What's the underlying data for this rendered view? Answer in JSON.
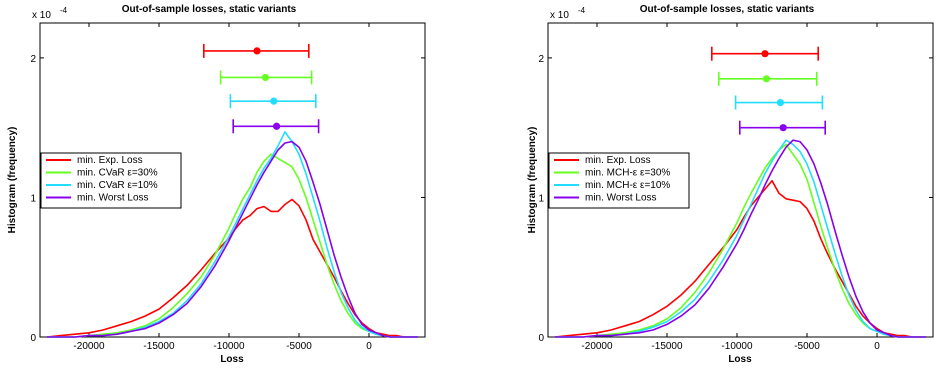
{
  "chart_data": [
    {
      "type": "line",
      "title": "Out-of-sample losses, static variants",
      "xlabel": "Loss",
      "ylabel": "Histogram (frequency)",
      "y_multiplier": "x 10",
      "y_exponent": "-4",
      "xlim": [
        -23500,
        4000
      ],
      "ylim": [
        0,
        0.000225
      ],
      "xticks": [
        -20000,
        -15000,
        -10000,
        -5000,
        0
      ],
      "xtick_labels": [
        "-20000",
        "-15000",
        "-10000",
        "-5000",
        "0"
      ],
      "yticks": [
        0,
        0.0001,
        0.0002
      ],
      "ytick_labels": [
        "0",
        "1",
        "2"
      ],
      "grid": false,
      "legend_position": "middle-left",
      "series": [
        {
          "name": "min. Exp. Loss",
          "color": "#ff0000",
          "x": [
            -23000,
            -22000,
            -21000,
            -20000,
            -19000,
            -18000,
            -17000,
            -16000,
            -15000,
            -14000,
            -13000,
            -12000,
            -11000,
            -10000,
            -9500,
            -9000,
            -8500,
            -8000,
            -7500,
            -7000,
            -6500,
            -6000,
            -5500,
            -5000,
            -4500,
            -4000,
            -3500,
            -3000,
            -2500,
            -2000,
            -1500,
            -1000,
            -500,
            0,
            500,
            1000,
            1500,
            2000,
            2500,
            3000,
            3500
          ],
          "y": [
            0,
            1e-06,
            2e-06,
            3e-06,
            5e-06,
            8e-06,
            1.1e-05,
            1.5e-05,
            2e-05,
            2.8e-05,
            3.7e-05,
            4.8e-05,
            6e-05,
            7.1e-05,
            7.8e-05,
            8.4e-05,
            8.7e-05,
            9.2e-05,
            9.35e-05,
            9e-05,
            9e-05,
            9.5e-05,
            9.85e-05,
            9.4e-05,
            8.4e-05,
            7e-05,
            6.1e-05,
            5.2e-05,
            4.3e-05,
            3.3e-05,
            2.4e-05,
            1.6e-05,
            1e-05,
            6e-06,
            3e-06,
            2e-06,
            1e-06,
            1e-06,
            0,
            0,
            0
          ]
        },
        {
          "name": "min. CVaR ε=30%",
          "color": "#66ff22",
          "x": [
            -23000,
            -22000,
            -21000,
            -20000,
            -19000,
            -18000,
            -17000,
            -16000,
            -15000,
            -14000,
            -13000,
            -12000,
            -11000,
            -10000,
            -9500,
            -9000,
            -8500,
            -8000,
            -7500,
            -7000,
            -6500,
            -6000,
            -5500,
            -5000,
            -4500,
            -4000,
            -3500,
            -3000,
            -2500,
            -2000,
            -1500,
            -1000,
            -500,
            0,
            500,
            1000,
            1500,
            2000,
            2500,
            3000,
            3500
          ],
          "y": [
            0,
            0,
            0,
            1e-06,
            2e-06,
            3e-06,
            5e-06,
            8e-06,
            1.3e-05,
            2.1e-05,
            3.1e-05,
            4.3e-05,
            5.9e-05,
            7.8e-05,
            8.9e-05,
            9.9e-05,
            0.000107,
            0.000118,
            0.000126,
            0.000131,
            0.000128,
            0.000125,
            0.000122,
            0.000113,
            0.0001,
            8.4e-05,
            6.8e-05,
            5.2e-05,
            3.8e-05,
            2.6e-05,
            1.7e-05,
            1e-05,
            6e-06,
            4e-06,
            2e-06,
            1e-06,
            0,
            0,
            0,
            0,
            0
          ]
        },
        {
          "name": "min. CVaR ε=10%",
          "color": "#22ddff",
          "x": [
            -23000,
            -22000,
            -21000,
            -20000,
            -19000,
            -18000,
            -17000,
            -16000,
            -15000,
            -14000,
            -13000,
            -12000,
            -11000,
            -10000,
            -9500,
            -9000,
            -8500,
            -8000,
            -7500,
            -7000,
            -6500,
            -6000,
            -5500,
            -5000,
            -4500,
            -4000,
            -3500,
            -3000,
            -2500,
            -2000,
            -1500,
            -1000,
            -500,
            0,
            500,
            1000,
            1500,
            2000,
            2500,
            3000,
            3500
          ],
          "y": [
            0,
            0,
            0,
            1e-06,
            1e-06,
            2e-06,
            4e-06,
            7e-06,
            1.1e-05,
            1.7e-05,
            2.6e-05,
            3.8e-05,
            5.4e-05,
            7.2e-05,
            8.2e-05,
            9.2e-05,
            0.000102,
            0.000112,
            0.000121,
            0.000128,
            0.000137,
            0.000147,
            0.00014,
            0.000131,
            0.000117,
            0.0001,
            8.3e-05,
            6.4e-05,
            4.7e-05,
            3.2e-05,
            2.1e-05,
            1.2e-05,
            7e-06,
            4e-06,
            2e-06,
            1e-06,
            0,
            0,
            0,
            0,
            0
          ]
        },
        {
          "name": "min. Worst Loss",
          "color": "#8800ee",
          "x": [
            -23000,
            -22000,
            -21000,
            -20000,
            -19000,
            -18000,
            -17000,
            -16000,
            -15000,
            -14000,
            -13000,
            -12000,
            -11000,
            -10000,
            -9500,
            -9000,
            -8500,
            -8000,
            -7500,
            -7000,
            -6500,
            -6000,
            -5500,
            -5000,
            -4500,
            -4000,
            -3500,
            -3000,
            -2500,
            -2000,
            -1500,
            -1000,
            -500,
            0,
            500,
            1000,
            1500,
            2000,
            2500,
            3000,
            3500
          ],
          "y": [
            0,
            0,
            0,
            1e-06,
            1e-06,
            2e-06,
            4e-06,
            6e-06,
            1e-05,
            1.6e-05,
            2.4e-05,
            3.6e-05,
            5.1e-05,
            6.9e-05,
            7.9e-05,
            8.9e-05,
            9.9e-05,
            0.000109,
            0.000118,
            0.000126,
            0.000134,
            0.000139,
            0.00014,
            0.000136,
            0.000126,
            0.000111,
            9.5e-05,
            7.7e-05,
            5.9e-05,
            4.3e-05,
            2.9e-05,
            1.7e-05,
            9e-06,
            5e-06,
            3e-06,
            1e-06,
            0,
            0,
            0,
            0,
            0
          ]
        }
      ],
      "intervals": [
        {
          "color": "#ff0000",
          "low": -11800,
          "mid": -8000,
          "high": -4300,
          "y": 0.000205
        },
        {
          "color": "#66ff22",
          "low": -10600,
          "mid": -7400,
          "high": -4100,
          "y": 0.000186
        },
        {
          "color": "#22ddff",
          "low": -9900,
          "mid": -6800,
          "high": -3800,
          "y": 0.000169
        },
        {
          "color": "#8800ee",
          "low": -9700,
          "mid": -6600,
          "high": -3600,
          "y": 0.000151
        }
      ]
    },
    {
      "type": "line",
      "title": "Out-of-sample losses, static variants",
      "xlabel": "Loss",
      "ylabel": "Histogram (frequency)",
      "y_multiplier": "x 10",
      "y_exponent": "-4",
      "xlim": [
        -23500,
        4000
      ],
      "ylim": [
        0,
        0.000225
      ],
      "xticks": [
        -20000,
        -15000,
        -10000,
        -5000,
        0
      ],
      "xtick_labels": [
        "-20000",
        "-15000",
        "-10000",
        "-5000",
        "0"
      ],
      "yticks": [
        0,
        0.0001,
        0.0002
      ],
      "ytick_labels": [
        "0",
        "1",
        "2"
      ],
      "grid": false,
      "legend_position": "middle-left",
      "series": [
        {
          "name": "min. Exp. Loss",
          "color": "#ff0000",
          "x": [
            -23000,
            -22000,
            -21000,
            -20000,
            -19000,
            -18000,
            -17000,
            -16000,
            -15000,
            -14000,
            -13000,
            -12000,
            -11000,
            -10000,
            -9500,
            -9000,
            -8500,
            -8000,
            -7500,
            -7000,
            -6500,
            -6000,
            -5500,
            -5000,
            -4500,
            -4000,
            -3500,
            -3000,
            -2500,
            -2000,
            -1500,
            -1000,
            -500,
            0,
            500,
            1000,
            1500,
            2000,
            2500,
            3000,
            3500
          ],
          "y": [
            0,
            1e-06,
            2e-06,
            3e-06,
            5e-06,
            8e-06,
            1.1e-05,
            1.6e-05,
            2.2e-05,
            3e-05,
            4e-05,
            5.2e-05,
            6.4e-05,
            7.7e-05,
            8.6e-05,
            9.4e-05,
            0.0001,
            0.000106,
            0.000112,
            0.000103,
            9.9e-05,
            9.8e-05,
            9.7e-05,
            9.2e-05,
            8.3e-05,
            7e-05,
            5.9e-05,
            4.9e-05,
            4e-05,
            3.1e-05,
            2.2e-05,
            1.5e-05,
            1e-05,
            6e-06,
            3e-06,
            2e-06,
            1e-06,
            1e-06,
            0,
            0,
            0
          ]
        },
        {
          "name": "min. MCH-ε ε=30%",
          "color": "#66ff22",
          "x": [
            -23000,
            -22000,
            -21000,
            -20000,
            -19000,
            -18000,
            -17000,
            -16000,
            -15000,
            -14000,
            -13000,
            -12000,
            -11000,
            -10000,
            -9500,
            -9000,
            -8500,
            -8000,
            -7500,
            -7000,
            -6500,
            -6000,
            -5500,
            -5000,
            -4500,
            -4000,
            -3500,
            -3000,
            -2500,
            -2000,
            -1500,
            -1000,
            -500,
            0,
            500,
            1000,
            1500,
            2000,
            2500,
            3000,
            3500
          ],
          "y": [
            0,
            0,
            0,
            1e-06,
            2e-06,
            3e-06,
            5e-06,
            8e-06,
            1.3e-05,
            2.1e-05,
            3.2e-05,
            4.6e-05,
            6.3e-05,
            8.2e-05,
            9.3e-05,
            0.000103,
            0.000112,
            0.000121,
            0.000128,
            0.000134,
            0.000138,
            0.000131,
            0.000124,
            0.000113,
            9.6e-05,
            7.9e-05,
            6.3e-05,
            4.8e-05,
            3.5e-05,
            2.4e-05,
            1.6e-05,
            1e-05,
            6e-06,
            4e-06,
            2e-06,
            1e-06,
            0,
            0,
            0,
            0,
            0
          ]
        },
        {
          "name": "min. MCH-ε ε=10%",
          "color": "#22ddff",
          "x": [
            -23000,
            -22000,
            -21000,
            -20000,
            -19000,
            -18000,
            -17000,
            -16000,
            -15000,
            -14000,
            -13000,
            -12000,
            -11000,
            -10000,
            -9500,
            -9000,
            -8500,
            -8000,
            -7500,
            -7000,
            -6500,
            -6000,
            -5500,
            -5000,
            -4500,
            -4000,
            -3500,
            -3000,
            -2500,
            -2000,
            -1500,
            -1000,
            -500,
            0,
            500,
            1000,
            1500,
            2000,
            2500,
            3000,
            3500
          ],
          "y": [
            0,
            0,
            0,
            1e-06,
            1e-06,
            2e-06,
            4e-06,
            7e-06,
            1.1e-05,
            1.8e-05,
            2.7e-05,
            4e-05,
            5.5e-05,
            7.3e-05,
            8.4e-05,
            9.5e-05,
            0.000106,
            0.000117,
            0.000126,
            0.000134,
            0.000141,
            0.000138,
            0.000133,
            0.000124,
            0.000111,
            9.4e-05,
            7.7e-05,
            6e-05,
            4.4e-05,
            3e-05,
            1.9e-05,
            1.1e-05,
            6e-06,
            4e-06,
            2e-06,
            1e-06,
            0,
            0,
            0,
            0,
            0
          ]
        },
        {
          "name": "min. Worst Loss",
          "color": "#8800ee",
          "x": [
            -23000,
            -22000,
            -21000,
            -20000,
            -19000,
            -18000,
            -17000,
            -16000,
            -15000,
            -14000,
            -13000,
            -12000,
            -11000,
            -10000,
            -9500,
            -9000,
            -8500,
            -8000,
            -7500,
            -7000,
            -6500,
            -6000,
            -5500,
            -5000,
            -4500,
            -4000,
            -3500,
            -3000,
            -2500,
            -2000,
            -1500,
            -1000,
            -500,
            0,
            500,
            1000,
            1500,
            2000,
            2500,
            3000,
            3500
          ],
          "y": [
            0,
            0,
            0,
            1e-06,
            1e-06,
            2e-06,
            3e-06,
            5e-06,
            9e-06,
            1.5e-05,
            2.3e-05,
            3.5e-05,
            5e-05,
            6.7e-05,
            7.7e-05,
            8.8e-05,
            9.8e-05,
            0.000109,
            0.000119,
            0.000128,
            0.000136,
            0.000141,
            0.00014,
            0.000134,
            0.000124,
            0.00011,
            9.4e-05,
            7.6e-05,
            5.9e-05,
            4.3e-05,
            2.9e-05,
            1.8e-05,
            1e-05,
            5e-06,
            3e-06,
            1e-06,
            0,
            0,
            0,
            0,
            0
          ]
        }
      ],
      "intervals": [
        {
          "color": "#ff0000",
          "low": -11800,
          "mid": -8000,
          "high": -4200,
          "y": 0.000203
        },
        {
          "color": "#66ff22",
          "low": -11300,
          "mid": -7900,
          "high": -4300,
          "y": 0.000185
        },
        {
          "color": "#22ddff",
          "low": -10100,
          "mid": -6900,
          "high": -3900,
          "y": 0.000168
        },
        {
          "color": "#8800ee",
          "low": -9800,
          "mid": -6700,
          "high": -3700,
          "y": 0.00015
        }
      ]
    }
  ]
}
